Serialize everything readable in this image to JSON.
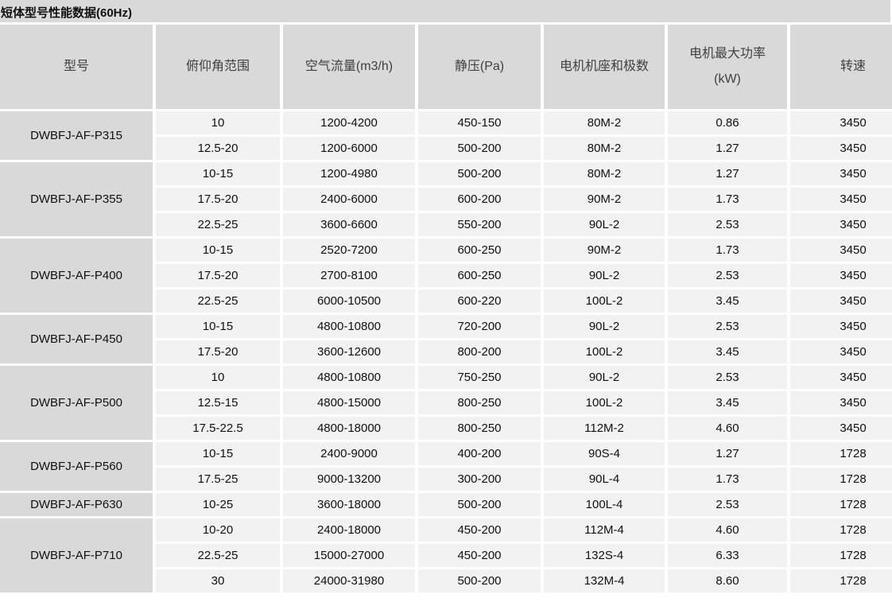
{
  "title": "短体型号性能数据(60Hz)",
  "headers": [
    "型号",
    "俯仰角范围",
    "空气流量(m3/h)",
    "静压(Pa)",
    "电机机座和极数",
    "电机最大功率\n(kW)",
    "转速"
  ],
  "groups": [
    {
      "model": "DWBFJ-AF-P315",
      "rows": [
        [
          "10",
          "1200-4200",
          "450-150",
          "80M-2",
          "0.86",
          "3450"
        ],
        [
          "12.5-20",
          "1200-6000",
          "500-200",
          "80M-2",
          "1.27",
          "3450"
        ]
      ]
    },
    {
      "model": "DWBFJ-AF-P355",
      "rows": [
        [
          "10-15",
          "1200-4980",
          "500-200",
          "80M-2",
          "1.27",
          "3450"
        ],
        [
          "17.5-20",
          "2400-6000",
          "600-200",
          "90M-2",
          "1.73",
          "3450"
        ],
        [
          "22.5-25",
          "3600-6600",
          "550-200",
          "90L-2",
          "2.53",
          "3450"
        ]
      ]
    },
    {
      "model": "DWBFJ-AF-P400",
      "rows": [
        [
          "10-15",
          "2520-7200",
          "600-250",
          "90M-2",
          "1.73",
          "3450"
        ],
        [
          "17.5-20",
          "2700-8100",
          "600-250",
          "90L-2",
          "2.53",
          "3450"
        ],
        [
          "22.5-25",
          "6000-10500",
          "600-220",
          "100L-2",
          "3.45",
          "3450"
        ]
      ]
    },
    {
      "model": "DWBFJ-AF-P450",
      "rows": [
        [
          "10-15",
          "4800-10800",
          "720-200",
          "90L-2",
          "2.53",
          "3450"
        ],
        [
          "17.5-20",
          "3600-12600",
          "800-200",
          "100L-2",
          "3.45",
          "3450"
        ]
      ]
    },
    {
      "model": "DWBFJ-AF-P500",
      "rows": [
        [
          "10",
          "4800-10800",
          "750-250",
          "90L-2",
          "2.53",
          "3450"
        ],
        [
          "12.5-15",
          "4800-15000",
          "800-250",
          "100L-2",
          "3.45",
          "3450"
        ],
        [
          "17.5-22.5",
          "4800-18000",
          "800-250",
          "112M-2",
          "4.60",
          "3450"
        ]
      ]
    },
    {
      "model": "DWBFJ-AF-P560",
      "rows": [
        [
          "10-15",
          "2400-9000",
          "400-200",
          "90S-4",
          "1.27",
          "1728"
        ],
        [
          "17.5-25",
          "9000-13200",
          "300-200",
          "90L-4",
          "1.73",
          "1728"
        ]
      ]
    },
    {
      "model": "DWBFJ-AF-P630",
      "rows": [
        [
          "10-25",
          "3600-18000",
          "500-200",
          "100L-4",
          "2.53",
          "1728"
        ]
      ]
    },
    {
      "model": "DWBFJ-AF-P710",
      "rows": [
        [
          "10-20",
          "2400-18000",
          "450-200",
          "112M-4",
          "4.60",
          "1728"
        ],
        [
          "22.5-25",
          "15000-27000",
          "450-200",
          "132S-4",
          "6.33",
          "1728"
        ],
        [
          "30",
          "24000-31980",
          "500-200",
          "132M-4",
          "8.60",
          "1728"
        ]
      ]
    }
  ]
}
